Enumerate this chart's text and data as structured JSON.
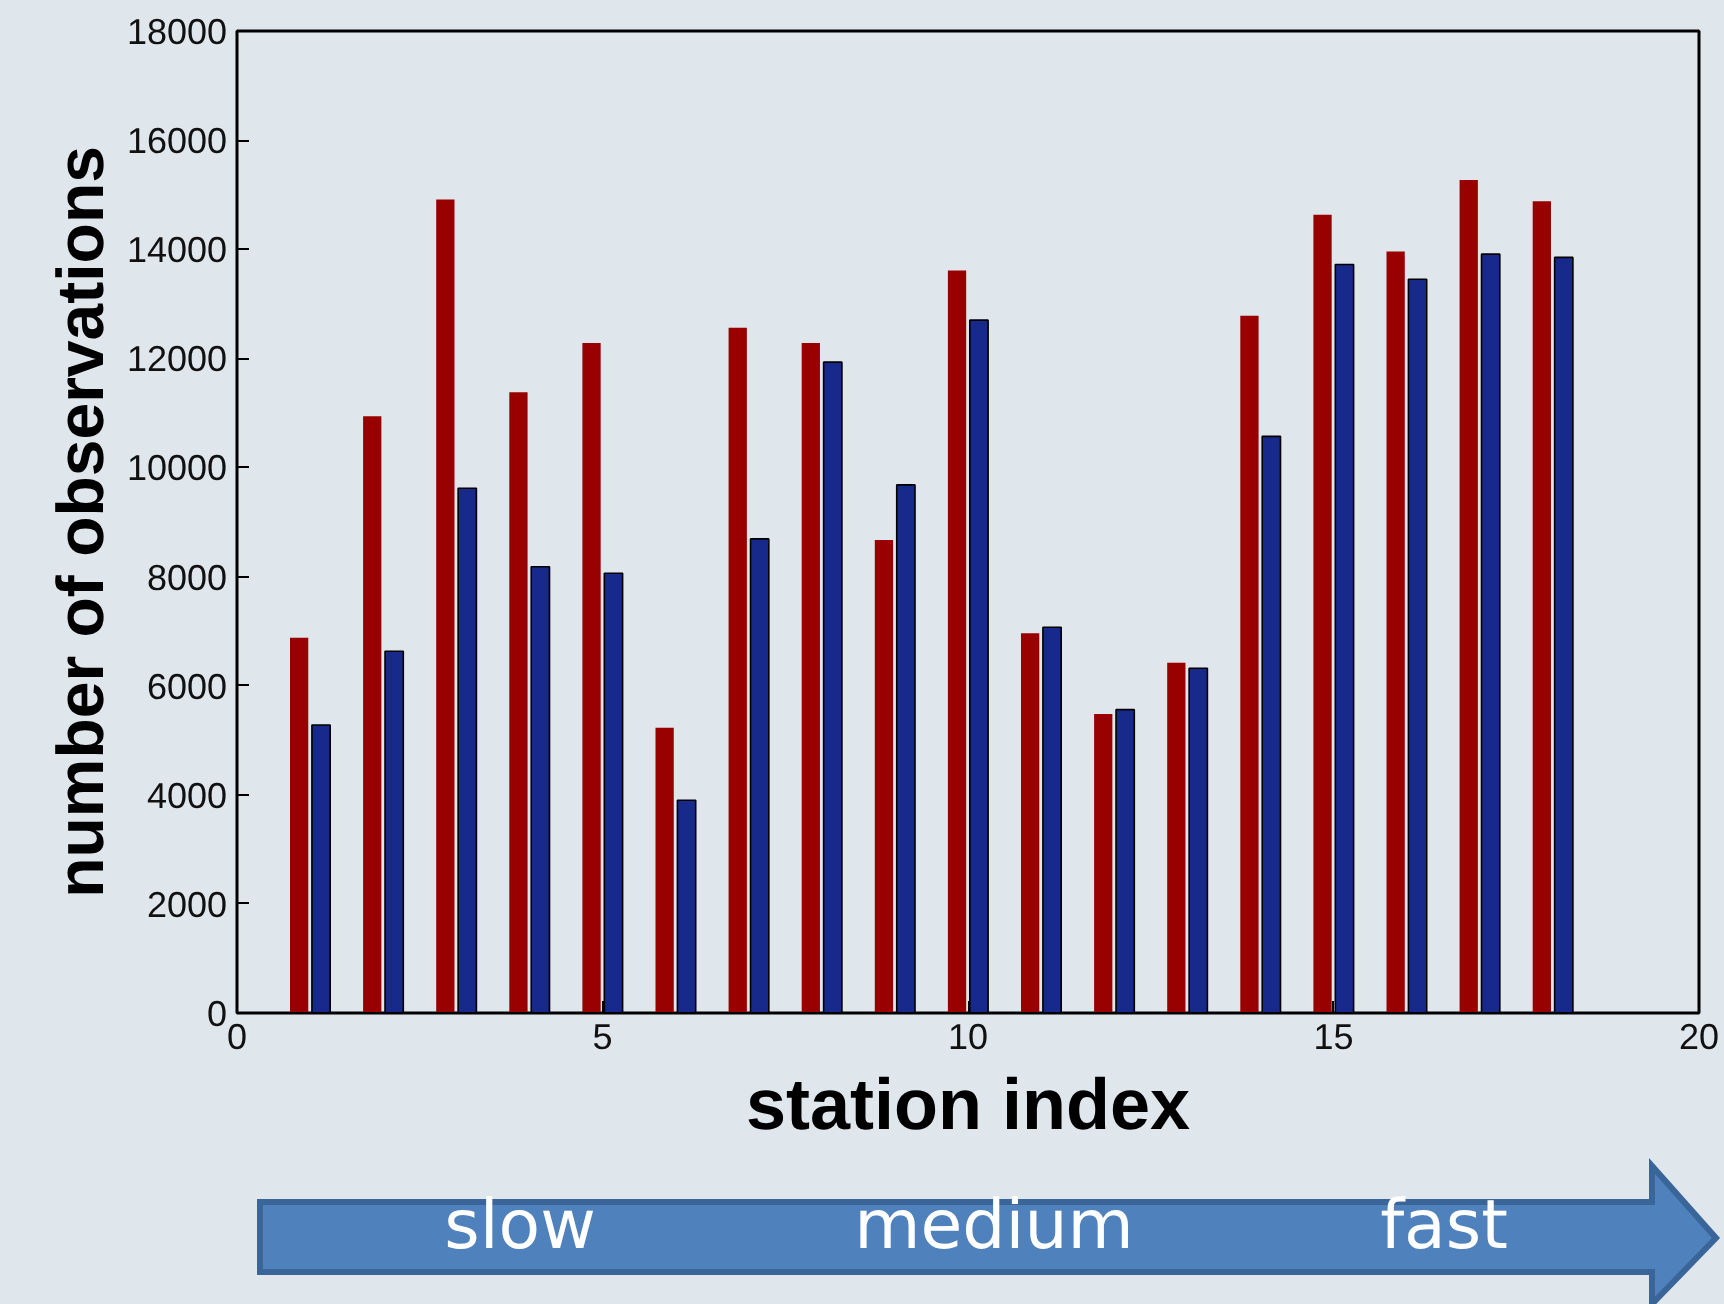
{
  "chart_data": {
    "type": "bar",
    "xlabel": "station index",
    "ylabel": "number of observations",
    "xlim": [
      0,
      20
    ],
    "xticks": [
      0,
      5,
      10,
      15,
      20
    ],
    "ylim": [
      0,
      18000
    ],
    "yticks": [
      0,
      2000,
      4000,
      6000,
      8000,
      10000,
      12000,
      14000,
      16000,
      18000
    ],
    "grid": false,
    "series": [
      {
        "color": "#990000",
        "x": [
          0.85,
          1.85,
          2.85,
          3.85,
          4.85,
          5.85,
          6.85,
          7.85,
          8.85,
          9.85,
          10.85,
          11.85,
          12.85,
          13.85,
          14.85,
          15.85,
          16.85,
          17.85
        ],
        "values": [
          6880,
          10940,
          14910,
          11380,
          12280,
          5230,
          12560,
          12280,
          8670,
          13610,
          6960,
          5480,
          6420,
          12780,
          14630,
          13960,
          15270,
          14880
        ]
      },
      {
        "color": "#172a8c",
        "x": [
          1.15,
          2.15,
          3.15,
          4.15,
          5.15,
          6.15,
          7.15,
          8.15,
          9.15,
          10.15,
          11.15,
          12.15,
          13.15,
          14.15,
          15.15,
          16.15,
          17.15,
          18.15
        ],
        "values": [
          5280,
          6630,
          9620,
          8180,
          8060,
          3900,
          8690,
          11930,
          9680,
          12700,
          7070,
          5560,
          6320,
          10570,
          13720,
          13450,
          13910,
          13850
        ]
      }
    ],
    "annotations": [
      "slow",
      "medium",
      "fast"
    ]
  }
}
